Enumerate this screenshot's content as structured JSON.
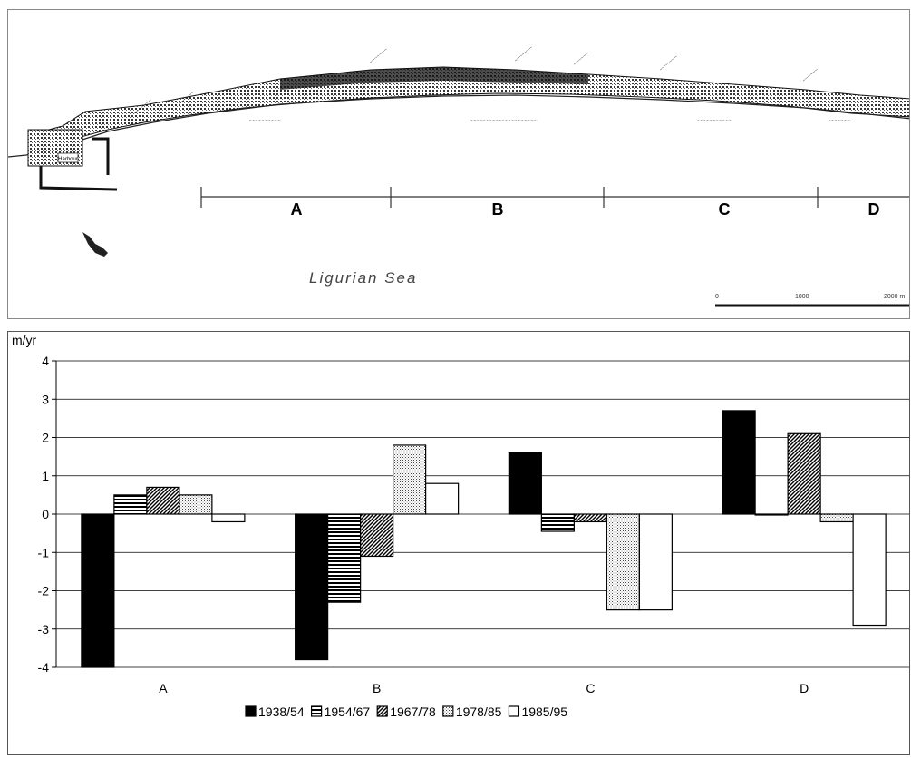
{
  "map": {
    "sea_label": "Ligurian Sea",
    "scale_labels": [
      "0",
      "1000",
      "2000 m"
    ],
    "segments": [
      "A",
      "B",
      "C",
      "D"
    ]
  },
  "chart_data": {
    "type": "bar",
    "ylabel": "m/yr",
    "ylim": [
      -4,
      4
    ],
    "yticks": [
      4,
      3,
      2,
      1,
      0,
      -1,
      -2,
      -3,
      -4
    ],
    "categories": [
      "A",
      "B",
      "C",
      "D"
    ],
    "series": [
      {
        "name": "1938/54",
        "values": [
          -4.0,
          -3.8,
          1.6,
          2.7
        ],
        "pattern": "solid-black"
      },
      {
        "name": "1954/67",
        "values": [
          0.5,
          -2.3,
          -0.45,
          0.0
        ],
        "pattern": "horizontal-lines"
      },
      {
        "name": "1967/78",
        "values": [
          0.7,
          -1.1,
          -0.2,
          2.1
        ],
        "pattern": "diagonal-hatch"
      },
      {
        "name": "1978/85",
        "values": [
          0.5,
          1.8,
          -2.5,
          -0.2
        ],
        "pattern": "fine-dots"
      },
      {
        "name": "1985/95",
        "values": [
          -0.2,
          0.8,
          -2.5,
          -2.9
        ],
        "pattern": "white"
      }
    ],
    "grid": true,
    "legend_position": "bottom"
  }
}
